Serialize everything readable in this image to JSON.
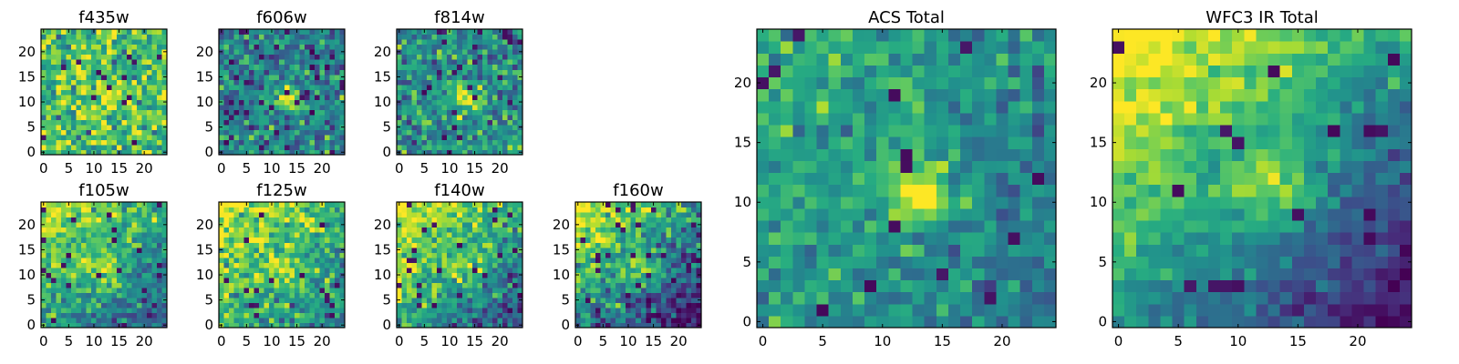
{
  "chart_data": [
    {
      "type": "heatmap",
      "title": "f435w",
      "rows": 25,
      "cols": 25,
      "xticks": [
        0,
        5,
        10,
        15,
        20
      ],
      "yticks": [
        0,
        5,
        10,
        15,
        20
      ],
      "xlim": [
        -0.5,
        24.5
      ],
      "ylim": [
        -0.5,
        24.5
      ],
      "cmap": "viridis",
      "grid": false,
      "source": {
        "peak": [
          13,
          11
        ],
        "peak_amp": 0.25,
        "width": 2.2,
        "bg_level": 0.72,
        "bg_gradient": [
          0.0,
          0.0
        ],
        "noise": 0.17,
        "low_outlier_rate": 0.03,
        "seed": 11
      },
      "values": []
    },
    {
      "type": "heatmap",
      "title": "f606w",
      "rows": 25,
      "cols": 25,
      "xticks": [
        0,
        5,
        10,
        15,
        20
      ],
      "yticks": [
        0,
        5,
        10,
        15,
        20
      ],
      "xlim": [
        -0.5,
        24.5
      ],
      "ylim": [
        -0.5,
        24.5
      ],
      "cmap": "viridis",
      "grid": false,
      "source": {
        "peak": [
          13,
          11
        ],
        "peak_amp": 0.55,
        "width": 1.6,
        "bg_level": 0.45,
        "bg_gradient": [
          0.0,
          0.0
        ],
        "noise": 0.16,
        "low_outlier_rate": 0.05,
        "seed": 23
      },
      "values": []
    },
    {
      "type": "heatmap",
      "title": "f814w",
      "rows": 25,
      "cols": 25,
      "xticks": [
        0,
        5,
        10,
        15,
        20
      ],
      "yticks": [
        0,
        5,
        10,
        15,
        20
      ],
      "xlim": [
        -0.5,
        24.5
      ],
      "ylim": [
        -0.5,
        24.5
      ],
      "cmap": "viridis",
      "grid": false,
      "source": {
        "peak": [
          13,
          11
        ],
        "peak_amp": 0.5,
        "width": 1.7,
        "bg_level": 0.5,
        "bg_gradient": [
          0.0,
          0.0
        ],
        "noise": 0.16,
        "low_outlier_rate": 0.05,
        "seed": 37
      },
      "values": []
    },
    {
      "type": "heatmap",
      "title": "f105w",
      "rows": 25,
      "cols": 25,
      "xticks": [
        0,
        5,
        10,
        15,
        20
      ],
      "yticks": [
        0,
        5,
        10,
        15,
        20
      ],
      "xlim": [
        -0.5,
        24.5
      ],
      "ylim": [
        -0.5,
        24.5
      ],
      "cmap": "viridis",
      "grid": false,
      "source": {
        "peak": [
          13,
          11
        ],
        "peak_amp": 0.3,
        "width": 2.5,
        "bg_level": 0.6,
        "bg_gradient": [
          -0.15,
          0.18
        ],
        "noise": 0.13,
        "low_outlier_rate": 0.03,
        "seed": 41
      },
      "values": []
    },
    {
      "type": "heatmap",
      "title": "f125w",
      "rows": 25,
      "cols": 25,
      "xticks": [
        0,
        5,
        10,
        15,
        20
      ],
      "yticks": [
        0,
        5,
        10,
        15,
        20
      ],
      "xlim": [
        -0.5,
        24.5
      ],
      "ylim": [
        -0.5,
        24.5
      ],
      "cmap": "viridis",
      "grid": false,
      "source": {
        "peak": [
          13,
          11
        ],
        "peak_amp": 0.2,
        "width": 2.4,
        "bg_level": 0.68,
        "bg_gradient": [
          -0.1,
          0.12
        ],
        "noise": 0.15,
        "low_outlier_rate": 0.03,
        "seed": 53
      },
      "values": []
    },
    {
      "type": "heatmap",
      "title": "f140w",
      "rows": 25,
      "cols": 25,
      "xticks": [
        0,
        5,
        10,
        15,
        20
      ],
      "yticks": [
        0,
        5,
        10,
        15,
        20
      ],
      "xlim": [
        -0.5,
        24.5
      ],
      "ylim": [
        -0.5,
        24.5
      ],
      "cmap": "viridis",
      "grid": false,
      "source": {
        "peak": [
          13,
          11
        ],
        "peak_amp": 0.2,
        "width": 2.4,
        "bg_level": 0.6,
        "bg_gradient": [
          -0.18,
          0.2
        ],
        "noise": 0.14,
        "low_outlier_rate": 0.03,
        "seed": 67
      },
      "values": []
    },
    {
      "type": "heatmap",
      "title": "f160w",
      "rows": 25,
      "cols": 25,
      "xticks": [
        0,
        5,
        10,
        15,
        20
      ],
      "yticks": [
        0,
        5,
        10,
        15,
        20
      ],
      "xlim": [
        -0.5,
        24.5
      ],
      "ylim": [
        -0.5,
        24.5
      ],
      "cmap": "viridis",
      "grid": false,
      "source": {
        "peak": [
          13,
          11
        ],
        "peak_amp": 0.3,
        "width": 2.2,
        "bg_level": 0.5,
        "bg_gradient": [
          -0.22,
          0.25
        ],
        "noise": 0.15,
        "low_outlier_rate": 0.06,
        "seed": 79
      },
      "values": []
    },
    {
      "type": "heatmap",
      "title": "ACS Total",
      "rows": 25,
      "cols": 25,
      "xticks": [
        0,
        5,
        10,
        15,
        20
      ],
      "yticks": [
        0,
        5,
        10,
        15,
        20
      ],
      "xlim": [
        -0.5,
        24.5
      ],
      "ylim": [
        -0.5,
        24.5
      ],
      "cmap": "viridis",
      "grid": false,
      "source": {
        "peak": [
          13,
          11
        ],
        "peak_amp": 0.5,
        "width": 2.0,
        "bg_level": 0.52,
        "bg_gradient": [
          -0.08,
          0.06
        ],
        "noise": 0.11,
        "low_outlier_rate": 0.03,
        "seed": 91
      },
      "values": []
    },
    {
      "type": "heatmap",
      "title": "WFC3 IR Total",
      "rows": 25,
      "cols": 25,
      "xticks": [
        0,
        5,
        10,
        15,
        20
      ],
      "yticks": [
        0,
        5,
        10,
        15,
        20
      ],
      "xlim": [
        -0.5,
        24.5
      ],
      "ylim": [
        -0.5,
        24.5
      ],
      "cmap": "viridis",
      "grid": false,
      "source": {
        "peak": [
          13,
          11
        ],
        "peak_amp": 0.35,
        "width": 2.2,
        "bg_level": 0.55,
        "bg_gradient": [
          -0.25,
          0.28
        ],
        "noise": 0.08,
        "low_outlier_rate": 0.03,
        "seed": 103
      },
      "values": []
    }
  ]
}
